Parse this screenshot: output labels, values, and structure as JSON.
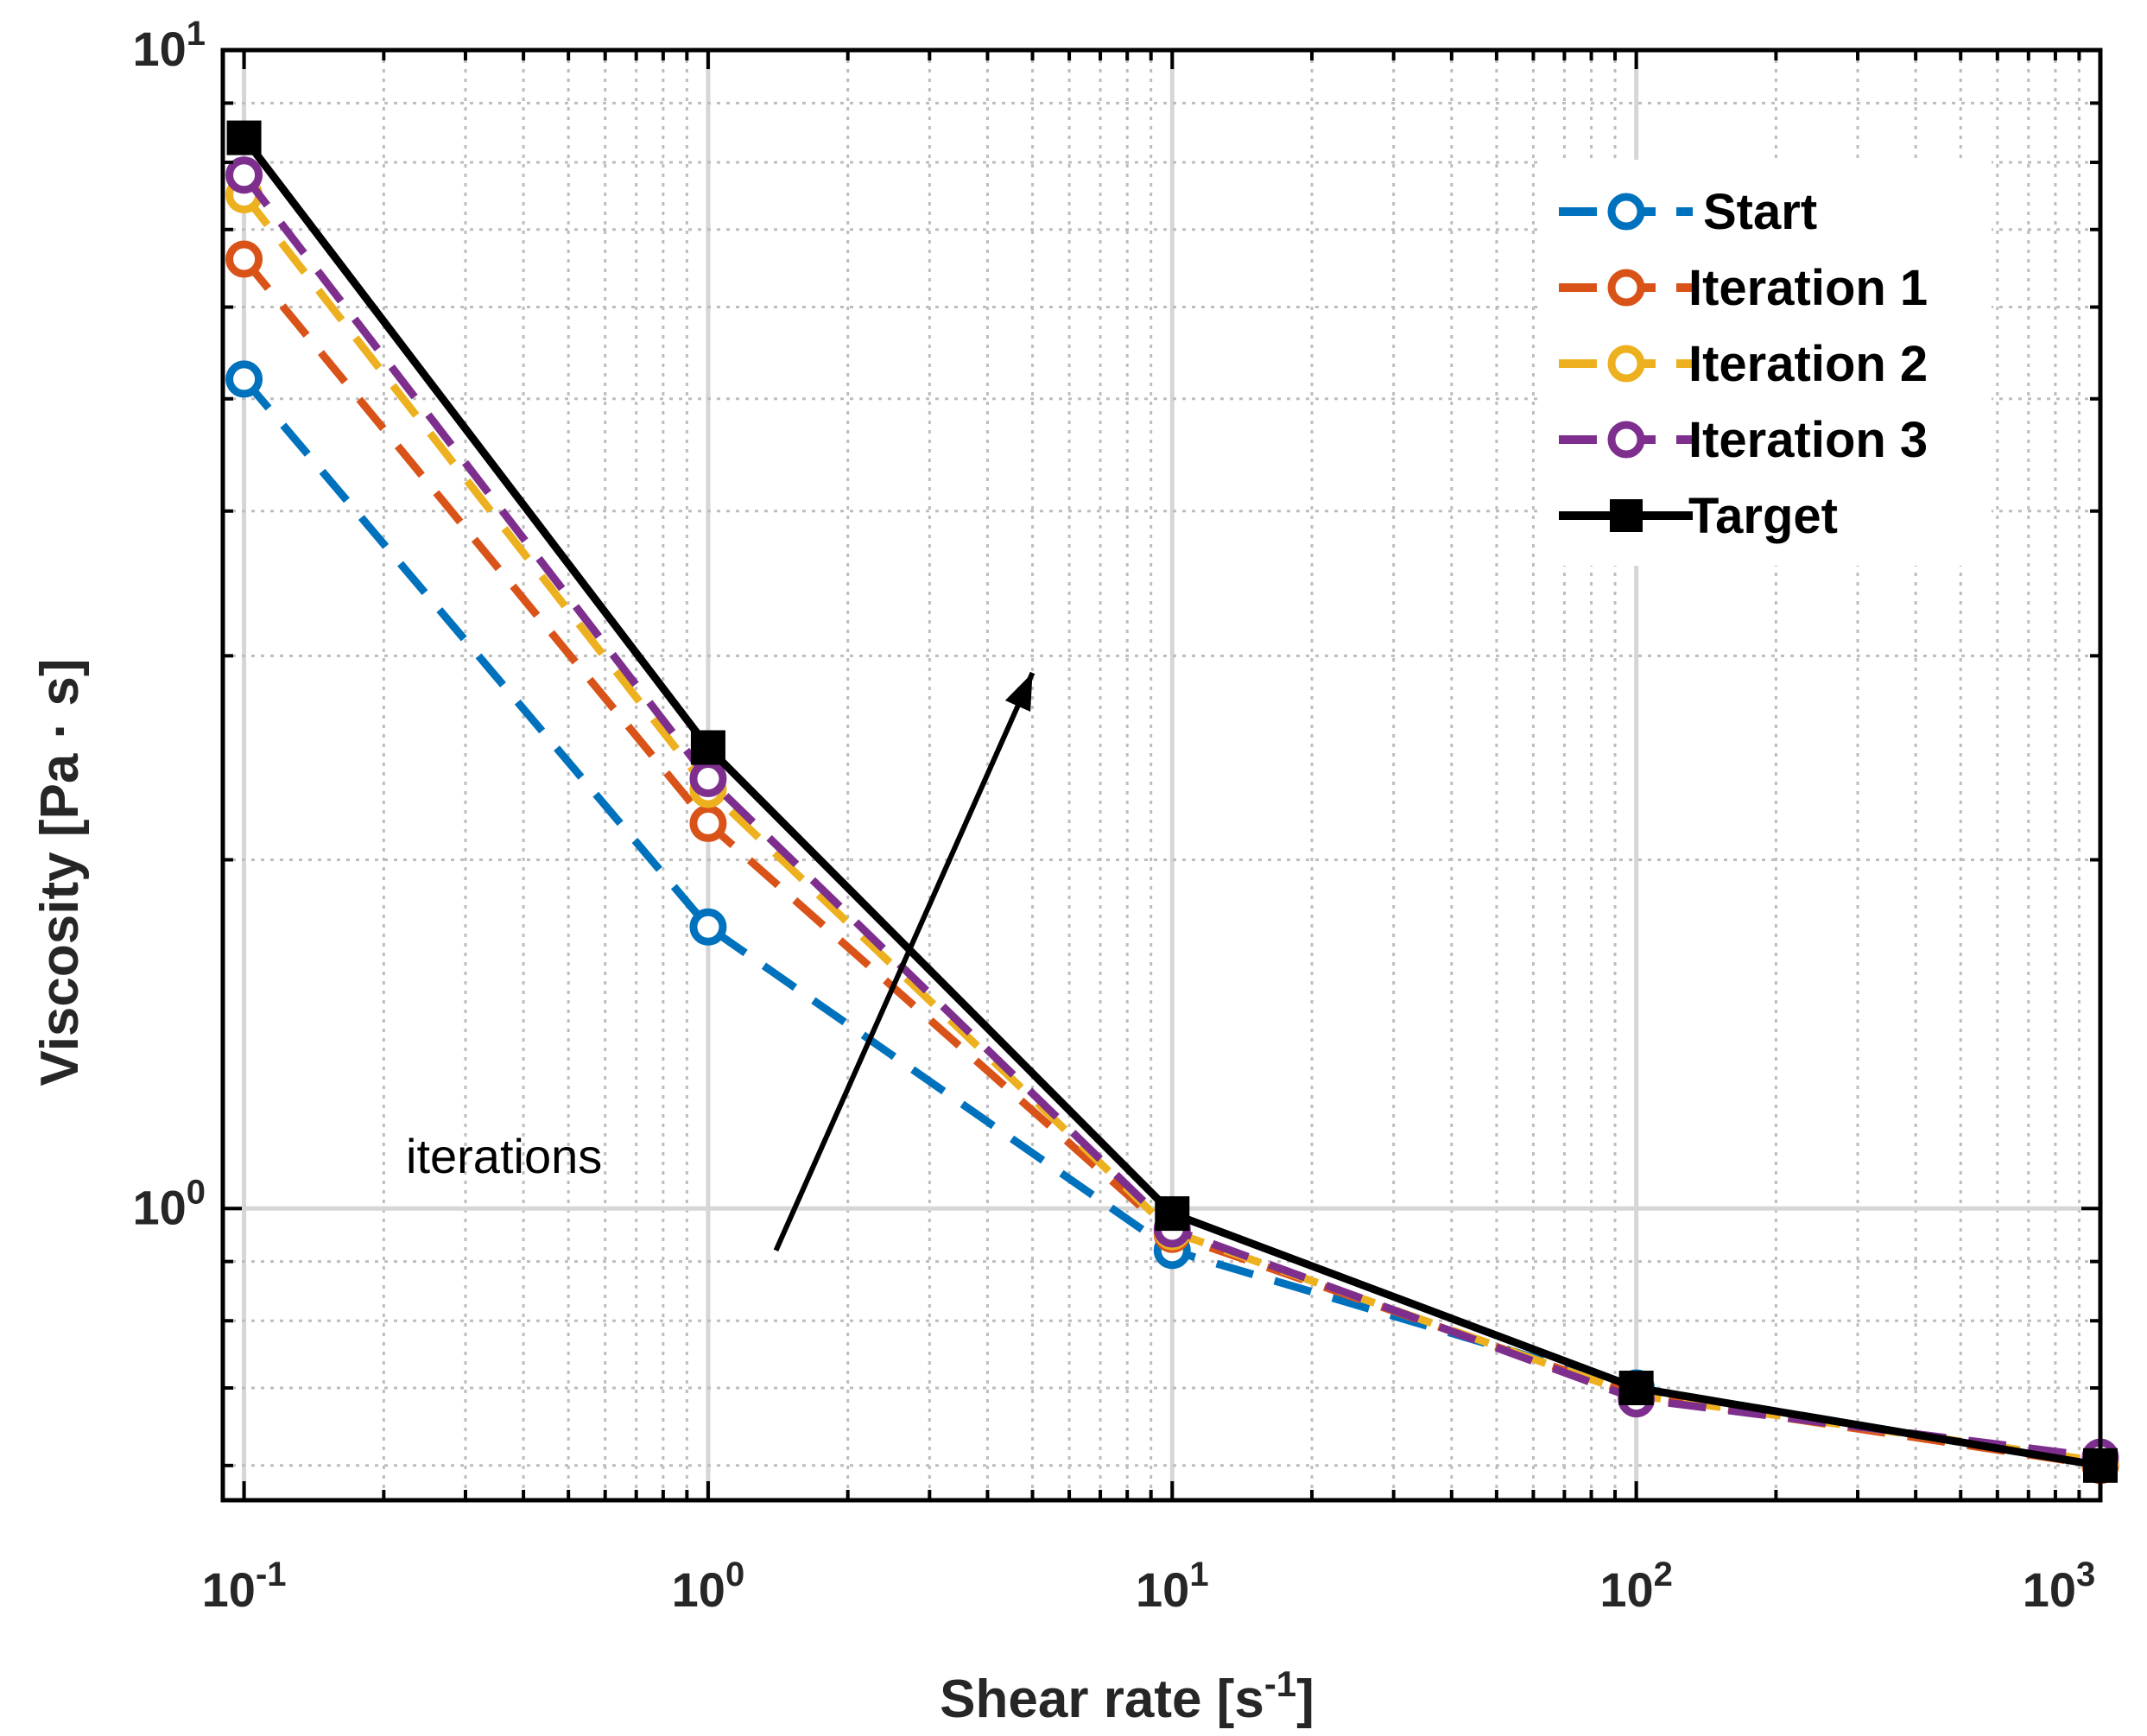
{
  "chart_data": {
    "type": "line",
    "xscale": "log",
    "yscale": "log",
    "xlim": [
      0.09,
      1000
    ],
    "ylim": [
      0.56,
      10
    ],
    "xlabel": "Shear rate [s-1]",
    "xlabel_main": "Shear rate [s",
    "xlabel_sup": "-1",
    "xlabel_end": "]",
    "ylabel": "Viscosity [Pa · s]",
    "grid": true,
    "legend_position": "top-right",
    "x": [
      0.1,
      1,
      10,
      100,
      1000
    ],
    "x_ticks": [
      {
        "base": "10",
        "exp": "-1"
      },
      {
        "base": "10",
        "exp": "0"
      },
      {
        "base": "10",
        "exp": "1"
      },
      {
        "base": "10",
        "exp": "2"
      },
      {
        "base": "10",
        "exp": "3"
      }
    ],
    "y_ticks": [
      {
        "value": 1,
        "base": "10",
        "exp": "0"
      },
      {
        "value": 10,
        "base": "10",
        "exp": "1"
      }
    ],
    "series": [
      {
        "name": "Start",
        "color": "#0072BD",
        "style": "dashed",
        "marker": "circle",
        "values": [
          5.2,
          1.75,
          0.92,
          0.7,
          0.6
        ]
      },
      {
        "name": "Iteration 1",
        "color": "#D95319",
        "style": "dashed",
        "marker": "circle",
        "values": [
          6.6,
          2.15,
          0.95,
          0.69,
          0.6
        ]
      },
      {
        "name": "Iteration 2",
        "color": "#EDB120",
        "style": "dashed",
        "marker": "circle",
        "values": [
          7.5,
          2.3,
          0.955,
          0.69,
          0.605
        ]
      },
      {
        "name": "Iteration 3",
        "color": "#7E2F8E",
        "style": "dashed",
        "marker": "circle",
        "values": [
          7.8,
          2.35,
          0.96,
          0.685,
          0.61
        ]
      },
      {
        "name": "Target",
        "color": "#000000",
        "style": "solid",
        "marker": "square",
        "values": [
          8.4,
          2.5,
          0.99,
          0.7,
          0.6
        ]
      }
    ],
    "annotations": [
      {
        "text": "iterations",
        "arrow_from": [
          1.4,
          0.92
        ],
        "arrow_to": [
          5,
          2.9
        ]
      }
    ]
  }
}
